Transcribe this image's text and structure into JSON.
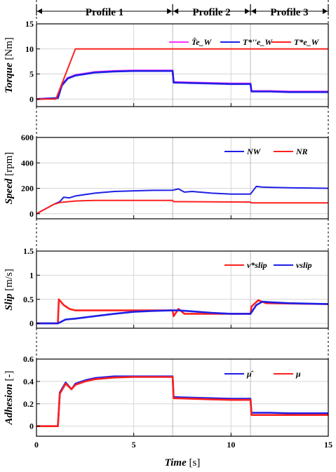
{
  "profiles": [
    "Profile 1",
    "Profile 2",
    "Profile 3"
  ],
  "profile_bounds": [
    0,
    7,
    11,
    15
  ],
  "xaxis": {
    "label_italic": "Time",
    "label_unit": " [s]",
    "ticks": [
      0,
      5,
      10,
      15
    ]
  },
  "colors": {
    "blue": "#1f1fe6",
    "red": "#ff2020",
    "magenta": "#ff30ff",
    "grid": "#d6d6d6"
  },
  "chart_data": [
    {
      "type": "line",
      "ylabel_italic": "Torque",
      "ylabel_unit": " [Nm]",
      "ylim": [
        -1.5,
        15
      ],
      "yticks": [
        "0",
        "5",
        "10",
        "15"
      ],
      "xlim": [
        0,
        15
      ],
      "grid": true,
      "legend": "top-right",
      "legend_labels": [
        "T̂e_W",
        "T*''e_W",
        "T*e_W"
      ],
      "series": [
        {
          "color": "magenta",
          "x": [
            0,
            1.1,
            1.3,
            1.6,
            2.0,
            3.0,
            4.0,
            5.0,
            6.0,
            7.0,
            7.05,
            8.0,
            9.0,
            10.0,
            11.0,
            11.05,
            12.0,
            13.0,
            14.0,
            15.0
          ],
          "y": [
            0,
            0.2,
            2.8,
            4.2,
            4.8,
            5.4,
            5.6,
            5.7,
            5.7,
            5.7,
            3.4,
            3.3,
            3.2,
            3.1,
            3.1,
            1.6,
            1.6,
            1.5,
            1.5,
            1.5
          ]
        },
        {
          "color": "blue",
          "x": [
            0,
            1.1,
            1.3,
            1.6,
            2.0,
            3.0,
            4.0,
            5.0,
            6.0,
            7.0,
            7.05,
            8.0,
            9.0,
            10.0,
            11.0,
            11.05,
            12.0,
            13.0,
            14.0,
            15.0
          ],
          "y": [
            0,
            0.2,
            2.7,
            4.1,
            4.7,
            5.3,
            5.5,
            5.6,
            5.6,
            5.6,
            3.3,
            3.2,
            3.1,
            3.0,
            3.0,
            1.5,
            1.5,
            1.4,
            1.4,
            1.4
          ]
        },
        {
          "color": "red",
          "x": [
            0,
            1.0,
            2.0,
            15.0
          ],
          "y": [
            0,
            0,
            10,
            10
          ]
        }
      ]
    },
    {
      "type": "line",
      "ylabel_italic": "Speed",
      "ylabel_unit": " [rpm]",
      "ylim": [
        -40,
        600
      ],
      "yticks": [
        "0",
        "200",
        "400",
        "600"
      ],
      "xlim": [
        0,
        15
      ],
      "grid": true,
      "legend": "top-right",
      "legend_labels": [
        "NW",
        "NR"
      ],
      "series": [
        {
          "color": "blue",
          "x": [
            0,
            0.9,
            1.2,
            1.4,
            1.7,
            2.0,
            3.0,
            4.0,
            5.0,
            6.0,
            7.0,
            7.3,
            7.6,
            8.0,
            9.0,
            10.0,
            11.0,
            11.3,
            11.6,
            12.0,
            13.0,
            14.0,
            15.0
          ],
          "y": [
            0,
            75,
            95,
            130,
            125,
            140,
            162,
            175,
            180,
            184,
            185,
            195,
            170,
            175,
            162,
            155,
            155,
            215,
            210,
            208,
            204,
            202,
            200
          ]
        },
        {
          "color": "red",
          "x": [
            0,
            0.9,
            1.2,
            2.0,
            3.0,
            7.0,
            7.05,
            11.0,
            11.05,
            15.0
          ],
          "y": [
            0,
            75,
            88,
            100,
            105,
            105,
            95,
            92,
            85,
            85
          ]
        }
      ]
    },
    {
      "type": "line",
      "ylabel_italic": "Slip",
      "ylabel_unit": " [m/s]",
      "ylim": [
        -0.1,
        1.5
      ],
      "yticks": [
        "0",
        "0.5",
        "1",
        "1.5"
      ],
      "xlim": [
        0,
        15
      ],
      "grid": true,
      "legend": "top-right",
      "legend_labels": [
        "v*slip",
        "vslip"
      ],
      "series": [
        {
          "color": "red",
          "x": [
            0,
            1.1,
            1.15,
            1.4,
            1.7,
            2.0,
            7.0,
            7.05,
            7.3,
            7.6,
            8.0,
            11.0,
            11.05,
            11.4,
            11.8,
            15.0
          ],
          "y": [
            0,
            0,
            0.5,
            0.38,
            0.3,
            0.27,
            0.27,
            0.15,
            0.3,
            0.2,
            0.2,
            0.2,
            0.35,
            0.48,
            0.42,
            0.4
          ]
        },
        {
          "color": "blue",
          "x": [
            0,
            1.1,
            1.5,
            2.0,
            3.0,
            4.0,
            5.0,
            6.0,
            7.0,
            7.3,
            8.0,
            9.0,
            10.0,
            11.0,
            11.3,
            11.6,
            12.0,
            13.0,
            14.0,
            15.0
          ],
          "y": [
            0,
            0,
            0.08,
            0.1,
            0.15,
            0.2,
            0.24,
            0.26,
            0.27,
            0.27,
            0.25,
            0.22,
            0.2,
            0.2,
            0.38,
            0.45,
            0.44,
            0.42,
            0.41,
            0.4
          ]
        }
      ]
    },
    {
      "type": "line",
      "ylabel_italic": "Adhesion",
      "ylabel_unit": " [-]",
      "ylim": [
        -0.09,
        0.6
      ],
      "yticks": [
        "0",
        "0.2",
        "0.4",
        "0.6"
      ],
      "xlim": [
        0,
        15
      ],
      "grid": true,
      "legend": "top-right",
      "legend_labels": [
        "μ̂",
        "μ"
      ],
      "series": [
        {
          "color": "blue",
          "x": [
            0,
            1.1,
            1.2,
            1.5,
            1.8,
            2.0,
            2.5,
            3.0,
            4.0,
            5.0,
            6.0,
            7.0,
            7.05,
            8.0,
            9.0,
            10.0,
            11.0,
            11.05,
            12.0,
            13.0,
            14.0,
            15.0
          ],
          "y": [
            0,
            0,
            0.3,
            0.39,
            0.33,
            0.38,
            0.41,
            0.43,
            0.445,
            0.445,
            0.445,
            0.445,
            0.26,
            0.255,
            0.25,
            0.245,
            0.245,
            0.12,
            0.12,
            0.115,
            0.115,
            0.115
          ]
        },
        {
          "color": "red",
          "x": [
            0,
            1.1,
            1.2,
            1.5,
            1.8,
            2.0,
            2.5,
            3.0,
            4.0,
            5.0,
            6.0,
            7.0,
            7.05,
            8.0,
            9.0,
            10.0,
            11.0,
            11.05,
            12.0,
            13.0,
            14.0,
            15.0
          ],
          "y": [
            0,
            0,
            0.29,
            0.38,
            0.33,
            0.37,
            0.4,
            0.42,
            0.435,
            0.44,
            0.44,
            0.44,
            0.25,
            0.245,
            0.24,
            0.235,
            0.235,
            0.1,
            0.1,
            0.1,
            0.1,
            0.1
          ]
        }
      ]
    }
  ]
}
